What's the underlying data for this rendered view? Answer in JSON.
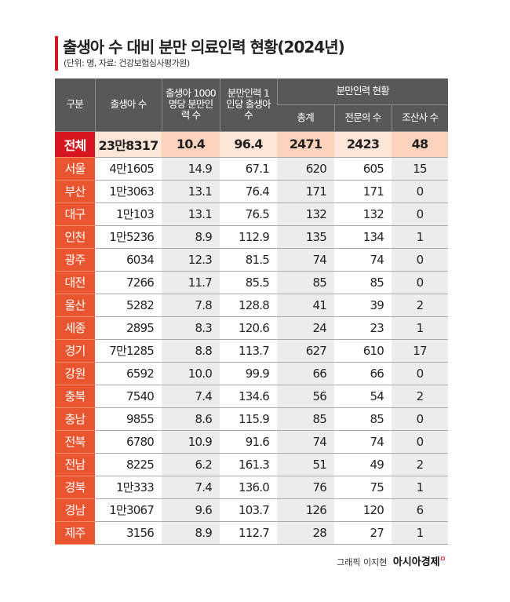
{
  "title": "출생아 수 대비 분만 의료인력 현황(2024년)",
  "subtitle": "(단위: 명, 자료: 건강보험심사평가원)",
  "credit": "그래픽 이지현",
  "logo": "아시아경제",
  "colors": {
    "header": "#58585a",
    "region": "#e8552e",
    "total": "#d7171f",
    "total_row": "#fde6d8"
  },
  "chart_data": {
    "type": "table",
    "headers": {
      "region": "구분",
      "births": "출생아 수",
      "per1000": "출생아 1000명당 분만인력 수",
      "per_staff": "분만인력 1인당 출생아 수",
      "group": "분만인력 현황",
      "total": "총계",
      "specialists": "전문의 수",
      "midwives": "조산사 수"
    },
    "rows": [
      [
        "전체",
        "23만8317",
        "10.4",
        "96.4",
        "2471",
        "2423",
        "48"
      ],
      [
        "서울",
        "4만1605",
        "14.9",
        "67.1",
        "620",
        "605",
        "15"
      ],
      [
        "부산",
        "1만3063",
        "13.1",
        "76.4",
        "171",
        "171",
        "0"
      ],
      [
        "대구",
        "1만103",
        "13.1",
        "76.5",
        "132",
        "132",
        "0"
      ],
      [
        "인천",
        "1만5236",
        "8.9",
        "112.9",
        "135",
        "134",
        "1"
      ],
      [
        "광주",
        "6034",
        "12.3",
        "81.5",
        "74",
        "74",
        "0"
      ],
      [
        "대전",
        "7266",
        "11.7",
        "85.5",
        "85",
        "85",
        "0"
      ],
      [
        "울산",
        "5282",
        "7.8",
        "128.8",
        "41",
        "39",
        "2"
      ],
      [
        "세종",
        "2895",
        "8.3",
        "120.6",
        "24",
        "23",
        "1"
      ],
      [
        "경기",
        "7만1285",
        "8.8",
        "113.7",
        "627",
        "610",
        "17"
      ],
      [
        "강원",
        "6592",
        "10.0",
        "99.9",
        "66",
        "66",
        "0"
      ],
      [
        "충북",
        "7540",
        "7.4",
        "134.6",
        "56",
        "54",
        "2"
      ],
      [
        "충남",
        "9855",
        "8.6",
        "115.9",
        "85",
        "85",
        "0"
      ],
      [
        "전북",
        "6780",
        "10.9",
        "91.6",
        "74",
        "74",
        "0"
      ],
      [
        "전남",
        "8225",
        "6.2",
        "161.3",
        "51",
        "49",
        "2"
      ],
      [
        "경북",
        "1만333",
        "7.4",
        "136.0",
        "76",
        "75",
        "1"
      ],
      [
        "경남",
        "1만3067",
        "9.6",
        "103.7",
        "126",
        "120",
        "6"
      ],
      [
        "제주",
        "3156",
        "8.9",
        "112.7",
        "28",
        "27",
        "1"
      ]
    ]
  }
}
